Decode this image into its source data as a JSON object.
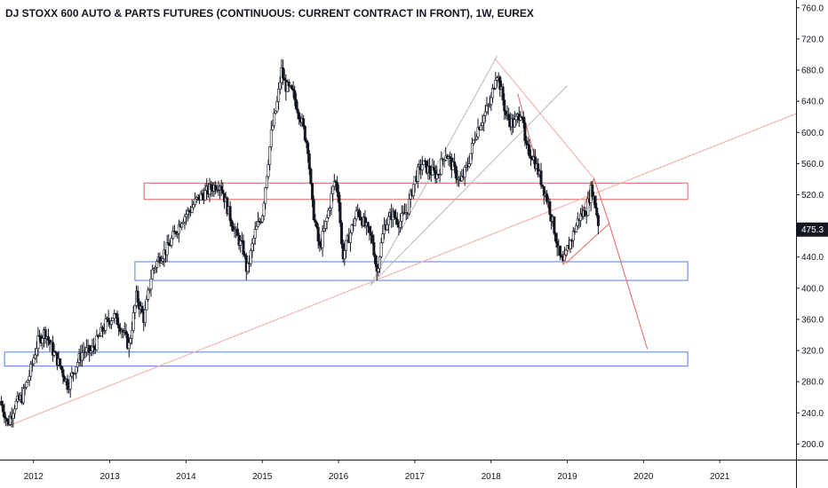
{
  "chart_data": {
    "type": "candlestick",
    "title": "DJ STOXX 600 AUTO & PARTS FUTURES (CONTINUOUS: CURRENT CONTRACT IN FRONT), 1W, EUREX",
    "y_ticks": [
      "200.0",
      "240.0",
      "280.0",
      "320.0",
      "360.0",
      "400.0",
      "440.0",
      "480.0",
      "520.0",
      "560.0",
      "600.0",
      "640.0",
      "680.0",
      "720.0",
      "760.0"
    ],
    "x_ticks": [
      {
        "label": "2012",
        "t": 2012.0
      },
      {
        "label": "2013",
        "t": 2013.0
      },
      {
        "label": "2014",
        "t": 2014.0
      },
      {
        "label": "2015",
        "t": 2015.0
      },
      {
        "label": "2016",
        "t": 2016.0
      },
      {
        "label": "2017",
        "t": 2017.0
      },
      {
        "label": "2018",
        "t": 2018.0
      },
      {
        "label": "2019",
        "t": 2019.0
      },
      {
        "label": "2020",
        "t": 2020.0
      },
      {
        "label": "2021",
        "t": 2021.0
      }
    ],
    "ylim": [
      180,
      770
    ],
    "xlim": [
      2011.56,
      2022.0
    ],
    "last_price": 475.3,
    "last_price_label": "475.3",
    "price_path": [
      [
        2011.56,
        255
      ],
      [
        2011.62,
        240
      ],
      [
        2011.66,
        225
      ],
      [
        2011.75,
        250
      ],
      [
        2011.85,
        260
      ],
      [
        2011.95,
        290
      ],
      [
        2012.05,
        330
      ],
      [
        2012.15,
        345
      ],
      [
        2012.25,
        320
      ],
      [
        2012.35,
        300
      ],
      [
        2012.45,
        275
      ],
      [
        2012.55,
        300
      ],
      [
        2012.65,
        320
      ],
      [
        2012.75,
        318
      ],
      [
        2012.85,
        335
      ],
      [
        2012.95,
        355
      ],
      [
        2013.05,
        365
      ],
      [
        2013.15,
        350
      ],
      [
        2013.25,
        325
      ],
      [
        2013.35,
        390
      ],
      [
        2013.45,
        360
      ],
      [
        2013.55,
        420
      ],
      [
        2013.65,
        440
      ],
      [
        2013.75,
        450
      ],
      [
        2013.85,
        470
      ],
      [
        2013.95,
        490
      ],
      [
        2014.05,
        500
      ],
      [
        2014.15,
        515
      ],
      [
        2014.25,
        522
      ],
      [
        2014.35,
        530
      ],
      [
        2014.45,
        535
      ],
      [
        2014.55,
        500
      ],
      [
        2014.65,
        470
      ],
      [
        2014.75,
        450
      ],
      [
        2014.8,
        420
      ],
      [
        2014.9,
        470
      ],
      [
        2015.0,
        495
      ],
      [
        2015.05,
        540
      ],
      [
        2015.12,
        600
      ],
      [
        2015.2,
        640
      ],
      [
        2015.25,
        680
      ],
      [
        2015.3,
        660
      ],
      [
        2015.4,
        650
      ],
      [
        2015.5,
        620
      ],
      [
        2015.6,
        580
      ],
      [
        2015.65,
        510
      ],
      [
        2015.75,
        450
      ],
      [
        2015.85,
        490
      ],
      [
        2015.95,
        540
      ],
      [
        2016.0,
        520
      ],
      [
        2016.05,
        440
      ],
      [
        2016.15,
        470
      ],
      [
        2016.25,
        500
      ],
      [
        2016.35,
        480
      ],
      [
        2016.45,
        460
      ],
      [
        2016.5,
        420
      ],
      [
        2016.6,
        480
      ],
      [
        2016.7,
        495
      ],
      [
        2016.8,
        485
      ],
      [
        2016.9,
        500
      ],
      [
        2017.0,
        540
      ],
      [
        2017.1,
        560
      ],
      [
        2017.2,
        550
      ],
      [
        2017.3,
        545
      ],
      [
        2017.4,
        575
      ],
      [
        2017.5,
        555
      ],
      [
        2017.6,
        535
      ],
      [
        2017.7,
        560
      ],
      [
        2017.8,
        600
      ],
      [
        2017.9,
        620
      ],
      [
        2018.0,
        640
      ],
      [
        2018.07,
        680
      ],
      [
        2018.12,
        660
      ],
      [
        2018.2,
        620
      ],
      [
        2018.3,
        610
      ],
      [
        2018.4,
        630
      ],
      [
        2018.45,
        580
      ],
      [
        2018.55,
        570
      ],
      [
        2018.65,
        540
      ],
      [
        2018.75,
        510
      ],
      [
        2018.82,
        480
      ],
      [
        2018.9,
        440
      ],
      [
        2018.95,
        430
      ],
      [
        2019.0,
        450
      ],
      [
        2019.08,
        470
      ],
      [
        2019.15,
        490
      ],
      [
        2019.25,
        500
      ],
      [
        2019.32,
        530
      ],
      [
        2019.38,
        500
      ],
      [
        2019.42,
        475.3
      ]
    ],
    "zones": [
      {
        "color": "#e8645a",
        "t0": 2013.45,
        "t1": 2020.58,
        "y0": 514,
        "y1": 535
      },
      {
        "color": "#4f7fe0",
        "t0": 2013.33,
        "t1": 2020.58,
        "y0": 410,
        "y1": 434
      },
      {
        "color": "#4f7fe0",
        "t0": 2011.62,
        "t1": 2020.58,
        "y0": 300,
        "y1": 318
      }
    ],
    "lines": [
      {
        "color": "#f2a7a1",
        "t0": 2011.66,
        "y0": 223,
        "t1": 2022.0,
        "y1": 624
      },
      {
        "color": "#b8b8b8",
        "t0": 2016.42,
        "y0": 404,
        "t1": 2018.08,
        "y1": 698
      },
      {
        "color": "#b8b8b8",
        "t0": 2016.42,
        "y0": 404,
        "t1": 2019.0,
        "y1": 660
      },
      {
        "color": "#f2a7a1",
        "t0": 2018.05,
        "y0": 695,
        "t1": 2019.35,
        "y1": 541
      },
      {
        "color": "#e8645a",
        "t0": 2018.35,
        "y0": 650,
        "t1": 2018.95,
        "y1": 430
      },
      {
        "color": "#e8645a",
        "t0": 2018.95,
        "y0": 430,
        "t1": 2019.35,
        "y1": 541
      },
      {
        "color": "#e8645a",
        "t0": 2019.35,
        "y0": 541,
        "t1": 2019.55,
        "y1": 483
      },
      {
        "color": "#e8645a",
        "t0": 2019.55,
        "y0": 483,
        "t1": 2018.98,
        "y1": 432
      },
      {
        "color": "#e8645a",
        "t0": 2019.55,
        "y0": 483,
        "t1": 2020.05,
        "y1": 322
      }
    ],
    "colors": {
      "candle": "#131722",
      "badge_bg": "#131722",
      "axis_line": "#131722"
    }
  }
}
